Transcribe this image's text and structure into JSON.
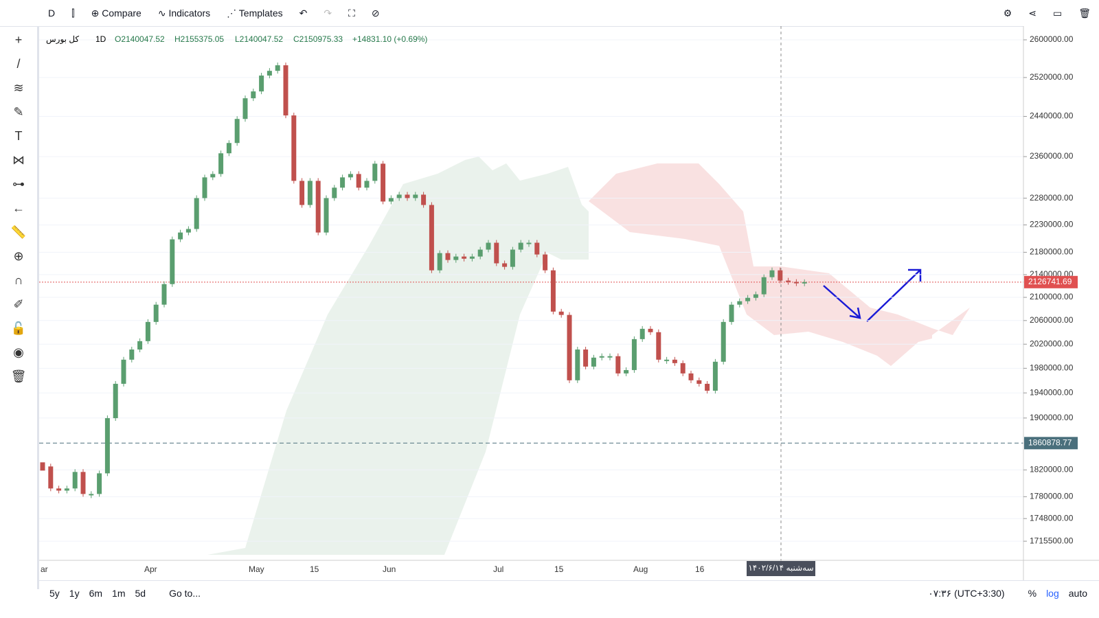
{
  "toolbar": {
    "interval": "D",
    "compare": "Compare",
    "indicators": "Indicators",
    "templates": "Templates"
  },
  "legend": {
    "symbol": "کل بورس",
    "interval": "1D",
    "open": "O2140047.52",
    "high": "H2155375.05",
    "low": "L2140047.52",
    "close": "C2150975.33",
    "change": "+14831.10 (+0.69%)"
  },
  "chart_data": {
    "type": "candlestick",
    "log": true,
    "values": [
      1825200,
      1792200,
      1789000,
      1792200,
      1816900,
      1784000,
      1784000,
      1814800,
      1899800,
      1954700,
      1994200,
      2011100,
      2025100,
      2057600,
      2087300,
      2123200,
      2203500,
      2216000,
      2222500,
      2280200,
      2319700,
      2326200,
      2366500,
      2386800,
      2434900,
      2477000,
      2491100,
      2524100,
      2534000,
      2545700,
      2442000,
      2313000,
      2267200,
      2313000,
      2216000,
      2280200,
      2300000,
      2319700,
      2326200,
      2300000,
      2313000,
      2346200,
      2273700,
      2280200,
      2286700,
      2280200,
      2286700,
      2267200,
      2147600,
      2178500,
      2166100,
      2172300,
      2168400,
      2172300,
      2184800,
      2197300,
      2160100,
      2153800,
      2184800,
      2197300,
      2197300,
      2176000,
      2147600,
      2075300,
      2069600,
      1960400,
      2011100,
      1982800,
      1997600,
      2000000,
      2000000,
      1971600,
      1977100,
      2028500,
      2045900,
      2040200,
      1994200,
      1994200,
      1988500,
      1971600,
      1960400,
      1954700,
      1943500,
      1990800,
      2057600,
      2087300,
      2093300,
      2099200,
      2105300,
      2135400,
      2147600,
      2129400,
      2127000,
      2125000,
      2126741.69
    ],
    "up_color": "#5a9e6f",
    "down_color": "#c0504d",
    "ylim": [
      1688500,
      2629800
    ],
    "yticks": [
      {
        "value": 2600000,
        "label": "2600000.00"
      },
      {
        "value": 2520000,
        "label": "2520000.00"
      },
      {
        "value": 2440000,
        "label": "2440000.00"
      },
      {
        "value": 2360000,
        "label": "2360000.00"
      },
      {
        "value": 2280000,
        "label": "2280000.00"
      },
      {
        "value": 2230000,
        "label": "2230000.00"
      },
      {
        "value": 2180000,
        "label": "2180000.00"
      },
      {
        "value": 2140000,
        "label": "2140000.00"
      },
      {
        "value": 2100000,
        "label": "2100000.00"
      },
      {
        "value": 2060000,
        "label": "2060000.00"
      },
      {
        "value": 2020000,
        "label": "2020000.00"
      },
      {
        "value": 1980000,
        "label": "1980000.00"
      },
      {
        "value": 1940000,
        "label": "1940000.00"
      },
      {
        "value": 1900000,
        "label": "1900000.00"
      },
      {
        "value": 1820000,
        "label": "1820000.00"
      },
      {
        "value": 1780000,
        "label": "1780000.00"
      },
      {
        "value": 1748000,
        "label": "1748000.00"
      },
      {
        "value": 1715500,
        "label": "1715500.00"
      }
    ],
    "last_price": {
      "value": 2126741.69,
      "label": "2126741.69"
    },
    "marker_price": {
      "value": 1860878.77,
      "label": "1860878.77"
    },
    "x_labels": [
      "ar",
      "Apr",
      "May",
      "15",
      "Jun",
      "Jul",
      "15",
      "Aug",
      "16"
    ],
    "crosshair_date": "سه‌شنبه ۱۴۰۲/۶/۱۴"
  },
  "bottom": {
    "ranges": [
      "5y",
      "1y",
      "6m",
      "1m",
      "5d"
    ],
    "goto": "Go to...",
    "time": "۰۷:۳۶ (UTC+3:30)",
    "percent": "%",
    "log": "log",
    "auto": "auto"
  }
}
